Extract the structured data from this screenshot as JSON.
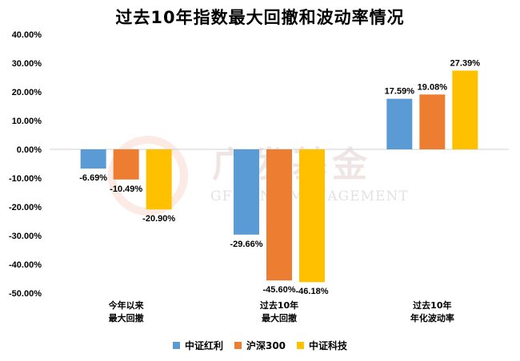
{
  "watermark": {
    "cn": "广发基金",
    "en": "GF FUND MANAGEMENT"
  },
  "chart_data": {
    "type": "bar",
    "title": "过去10年指数最大回撤和波动率情况",
    "categories": [
      [
        "今年以来",
        "最大回撤"
      ],
      [
        "过去10年",
        "最大回撤"
      ],
      [
        "过去10年",
        "年化波动率"
      ]
    ],
    "series": [
      {
        "name": "中证红利",
        "color": "#5B9BD5",
        "values": [
          -6.69,
          -29.66,
          17.59
        ],
        "labels": [
          "-6.69%",
          "-29.66%",
          "17.59%"
        ]
      },
      {
        "name": "沪深300",
        "color": "#ED7D31",
        "values": [
          -10.49,
          -45.6,
          19.08
        ],
        "labels": [
          "-10.49%",
          "-45.60%",
          "19.08%"
        ]
      },
      {
        "name": "中证科技",
        "color": "#FFC000",
        "values": [
          -20.9,
          -46.18,
          27.39
        ],
        "labels": [
          "-20.90%",
          "-46.18%",
          "27.39%"
        ]
      }
    ],
    "ylim": [
      -50,
      40
    ],
    "yticks": [
      40,
      30,
      20,
      10,
      0,
      -10,
      -20,
      -30,
      -40,
      -50
    ],
    "ytick_labels": [
      "40.00%",
      "30.00%",
      "20.00%",
      "10.00%",
      "0.00%",
      "-10.00%",
      "-20.00%",
      "-30.00%",
      "-40.00%",
      "-50.00%"
    ],
    "grid": false,
    "legend_position": "bottom"
  }
}
